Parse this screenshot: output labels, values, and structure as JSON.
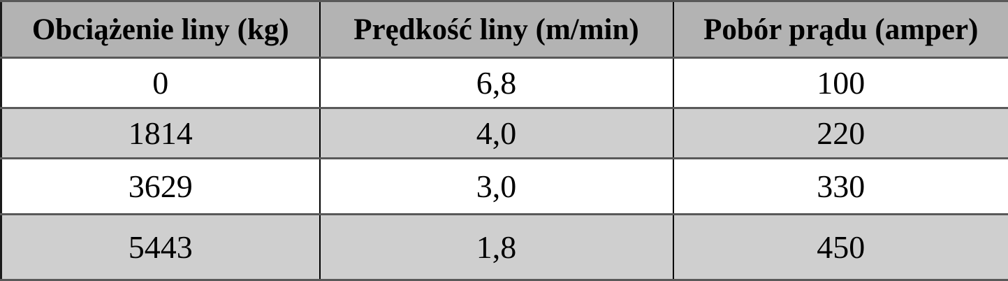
{
  "table": {
    "columns": [
      "Obciążenie liny (kg)",
      "Prędkość liny (m/min)",
      "Pobór prądu (amper)"
    ],
    "rows": [
      [
        "0",
        "6,8",
        "100"
      ],
      [
        "1814",
        "4,0",
        "220"
      ],
      [
        "3629",
        "3,0",
        "330"
      ],
      [
        "5443",
        "1,8",
        "450"
      ]
    ]
  },
  "colors": {
    "header_bg": "#b3b3b3",
    "row_bg": "#ffffff",
    "row_alt_bg": "#cfcfcf",
    "grid_vertical": "#000000",
    "grid_horizontal": "#595959",
    "outer_border": "#1a1a1a",
    "text": "#000000"
  }
}
